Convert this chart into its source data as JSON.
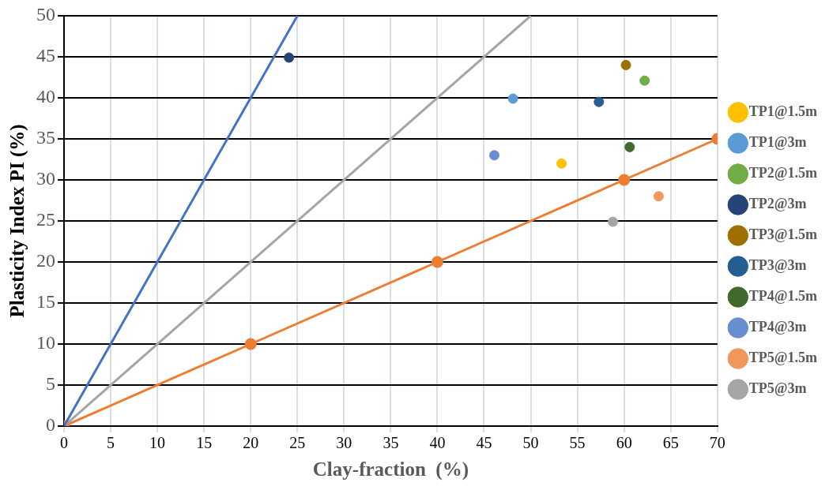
{
  "chart_data": {
    "type": "scatter",
    "xlabel": "Clay-fraction  (%)",
    "ylabel": "Plasticity Index PI (%)",
    "xlim": [
      0,
      70
    ],
    "xticks": [
      0,
      5,
      10,
      15,
      20,
      25,
      30,
      35,
      40,
      45,
      50,
      55,
      60,
      65,
      70
    ],
    "ylim": [
      0,
      50
    ],
    "yticks": [
      0,
      5,
      10,
      15,
      20,
      25,
      30,
      35,
      40,
      45,
      50
    ],
    "grid": true,
    "legend": "right",
    "marker": "circle",
    "series": [
      {
        "name": "TP1@1.5m",
        "color": "#ffc000",
        "x": [
          53.3
        ],
        "values": [
          32.0
        ]
      },
      {
        "name": "TP1@3m",
        "color": "#5b9bd5",
        "x": [
          48.1
        ],
        "values": [
          39.9
        ]
      },
      {
        "name": "TP2@1.5m",
        "color": "#70ad47",
        "x": [
          62.2
        ],
        "values": [
          42.1
        ]
      },
      {
        "name": "TP2@3m",
        "color": "#264478",
        "x": [
          24.1
        ],
        "values": [
          44.9
        ]
      },
      {
        "name": "TP3@1.5m",
        "color": "#9e7000",
        "x": [
          60.2
        ],
        "values": [
          44.0
        ]
      },
      {
        "name": "TP3@3m",
        "color": "#255e91",
        "x": [
          57.3
        ],
        "values": [
          39.5
        ]
      },
      {
        "name": "TP4@1.5m",
        "color": "#43682b",
        "x": [
          60.6
        ],
        "values": [
          34.0
        ]
      },
      {
        "name": "TP4@3m",
        "color": "#698ed0",
        "x": [
          46.1
        ],
        "values": [
          33.0
        ]
      },
      {
        "name": "TP5@1.5m",
        "color": "#f1975a",
        "x": [
          63.7
        ],
        "values": [
          28.0
        ]
      },
      {
        "name": "TP5@3m",
        "color": "#a5a5a5",
        "x": [
          58.8
        ],
        "values": [
          24.9
        ]
      },
      {
        "type": "line",
        "color": "#4472c4",
        "marker": "none",
        "x": [
          0,
          25
        ],
        "values": [
          0,
          50
        ]
      },
      {
        "type": "line",
        "color": "#a5a5a5",
        "marker": "none",
        "x": [
          0,
          50
        ],
        "values": [
          0,
          50
        ]
      },
      {
        "type": "line",
        "color": "#ed7d31",
        "marker": "circle",
        "x": [
          0,
          20,
          40,
          60,
          70
        ],
        "values": [
          0,
          10,
          20,
          30,
          35
        ]
      }
    ]
  }
}
